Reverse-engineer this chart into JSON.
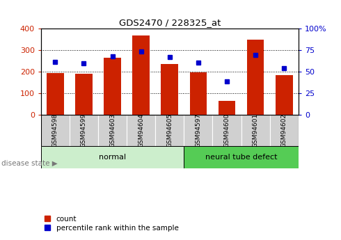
{
  "title": "GDS2470 / 228325_at",
  "samples": [
    "GSM94598",
    "GSM94599",
    "GSM94603",
    "GSM94604",
    "GSM94605",
    "GSM94597",
    "GSM94600",
    "GSM94601",
    "GSM94602"
  ],
  "counts": [
    195,
    192,
    265,
    368,
    238,
    197,
    65,
    350,
    185
  ],
  "percentile_ranks": [
    62,
    60,
    68,
    74,
    67,
    61,
    39,
    70,
    54
  ],
  "groups": [
    {
      "label": "normal",
      "start": 0,
      "end": 5,
      "color": "#cceecc"
    },
    {
      "label": "neural tube defect",
      "start": 5,
      "end": 9,
      "color": "#55cc55"
    }
  ],
  "bar_color": "#cc2200",
  "dot_color": "#0000cc",
  "left_ylim": [
    0,
    400
  ],
  "right_ylim": [
    0,
    100
  ],
  "left_yticks": [
    0,
    100,
    200,
    300,
    400
  ],
  "right_yticks": [
    0,
    25,
    50,
    75,
    100
  ],
  "left_yticklabels": [
    "0",
    "100",
    "200",
    "300",
    "400"
  ],
  "right_yticklabels": [
    "0",
    "25",
    "50",
    "75",
    "100%"
  ],
  "background_color": "#ffffff",
  "grid_color": "#000000",
  "legend_labels": [
    "count",
    "percentile rank within the sample"
  ],
  "disease_state_label": "disease state",
  "xtick_bg_color": "#d0d0d0",
  "normal_color": "#cceecc",
  "defect_color": "#55cc55"
}
